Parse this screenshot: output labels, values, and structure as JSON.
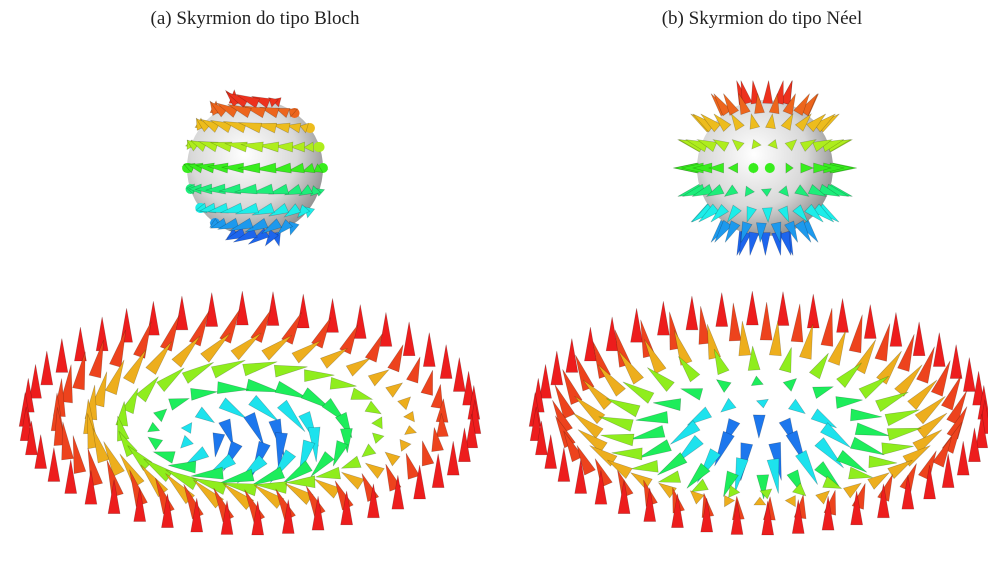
{
  "panels": [
    {
      "caption": "(a) Skyrmion do tipo Bloch"
    },
    {
      "caption": "(b) Skyrmion do tipo Néel"
    }
  ]
}
